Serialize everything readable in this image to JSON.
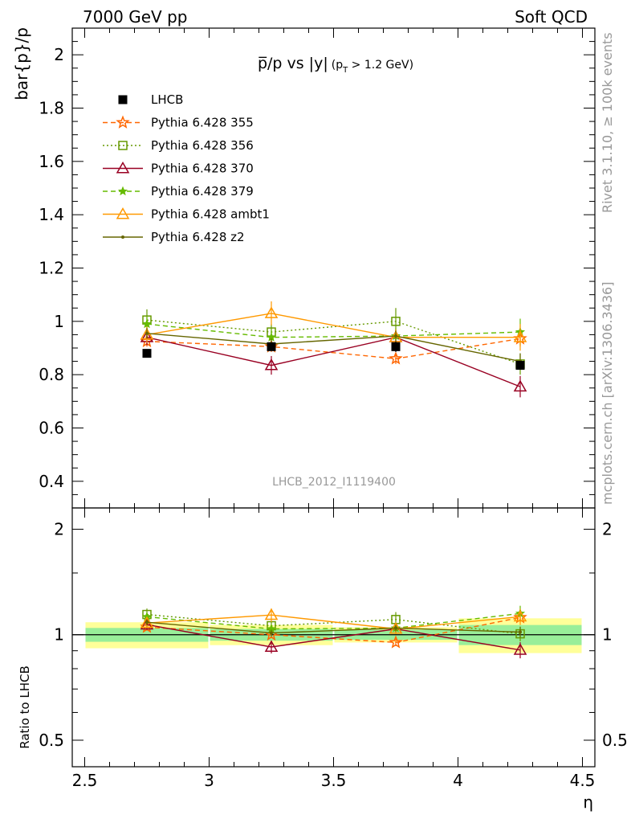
{
  "chart_data": {
    "type": "line",
    "header_left": "7000 GeV pp",
    "header_right": "Soft QCD",
    "side_top": "Rivet 3.1.10, ≥ 100k events",
    "side_bottom": "mcplots.cern.ch [arXiv:1306.3436]",
    "title": {
      "main": "p̅/p vs |y|",
      "paren_open": "(p",
      "sub": "T",
      "paren_close": " > 1.2 GeV)"
    },
    "ylabel": "bar{p}/p",
    "ratio_ylabel": "Ratio to LHCB",
    "xlabel": "η",
    "watermark": "LHCB_2012_I1119400",
    "xlim": [
      2.45,
      4.55
    ],
    "ylim": [
      0.3,
      2.1
    ],
    "ratio_ylim": [
      0.42,
      2.3
    ],
    "x_ticks": [
      {
        "value": 2.5,
        "label": "2.5"
      },
      {
        "value": 3.0,
        "label": "3"
      },
      {
        "value": 3.5,
        "label": "3.5"
      },
      {
        "value": 4.0,
        "label": "4"
      },
      {
        "value": 4.5,
        "label": "4.5"
      }
    ],
    "y_ticks": [
      {
        "value": 0.4,
        "label": "0.4"
      },
      {
        "value": 0.6,
        "label": "0.6"
      },
      {
        "value": 0.8,
        "label": "0.8"
      },
      {
        "value": 1.0,
        "label": "1"
      },
      {
        "value": 1.2,
        "label": "1.2"
      },
      {
        "value": 1.4,
        "label": "1.4"
      },
      {
        "value": 1.6,
        "label": "1.6"
      },
      {
        "value": 1.8,
        "label": "1.8"
      },
      {
        "value": 2.0,
        "label": "2"
      }
    ],
    "ratio_y_ticks": [
      {
        "value": 0.5,
        "label": "0.5"
      },
      {
        "value": 1.0,
        "label": "1"
      },
      {
        "value": 2.0,
        "label": "2"
      }
    ],
    "data": {
      "name": "LHCB",
      "color": "#000000",
      "bins": [
        [
          2.5,
          3.0
        ],
        [
          3.0,
          3.5
        ],
        [
          3.5,
          4.0
        ],
        [
          4.0,
          4.5
        ]
      ],
      "x": [
        2.75,
        3.25,
        3.75,
        4.25
      ],
      "y": [
        0.88,
        0.905,
        0.905,
        0.835
      ],
      "err": [
        0.01,
        0.01,
        0.02,
        0.01
      ],
      "band_inner": [
        0.04,
        0.035,
        0.03,
        0.055
      ],
      "band_outer": [
        0.075,
        0.06,
        0.045,
        0.095
      ]
    },
    "series": [
      {
        "name": "Pythia 6.428 355",
        "color": "#ff6600",
        "dash": "6,4",
        "marker": "star",
        "y": [
          0.925,
          0.905,
          0.86,
          0.935
        ],
        "err": [
          0.02,
          0.02,
          0.02,
          0.03
        ]
      },
      {
        "name": "Pythia 6.428 356",
        "color": "#669900",
        "dash": "2,3",
        "marker": "square",
        "y": [
          1.005,
          0.96,
          1.0,
          0.84
        ],
        "err": [
          0.04,
          0.03,
          0.05,
          0.04
        ]
      },
      {
        "name": "Pythia 6.428 370",
        "color": "#990022",
        "dash": "",
        "marker": "triangle",
        "y": [
          0.94,
          0.835,
          0.94,
          0.755
        ],
        "err": [
          0.03,
          0.035,
          0.03,
          0.04
        ]
      },
      {
        "name": "Pythia 6.428 379",
        "color": "#66bb00",
        "dash": "6,4",
        "marker": "smallstar",
        "y": [
          0.99,
          0.94,
          0.945,
          0.96
        ],
        "err": [
          0.03,
          0.03,
          0.03,
          0.05
        ]
      },
      {
        "name": "Pythia 6.428 ambt1",
        "color": "#ff9900",
        "dash": "",
        "marker": "triangle",
        "y": [
          0.95,
          1.03,
          0.94,
          0.94
        ],
        "err": [
          0.03,
          0.045,
          0.03,
          0.05
        ]
      },
      {
        "name": "Pythia 6.428 z2",
        "color": "#666600",
        "dash": "",
        "marker": "dot",
        "y": [
          0.955,
          0.915,
          0.945,
          0.85
        ],
        "err": [
          0.02,
          0.02,
          0.02,
          0.03
        ]
      }
    ]
  }
}
